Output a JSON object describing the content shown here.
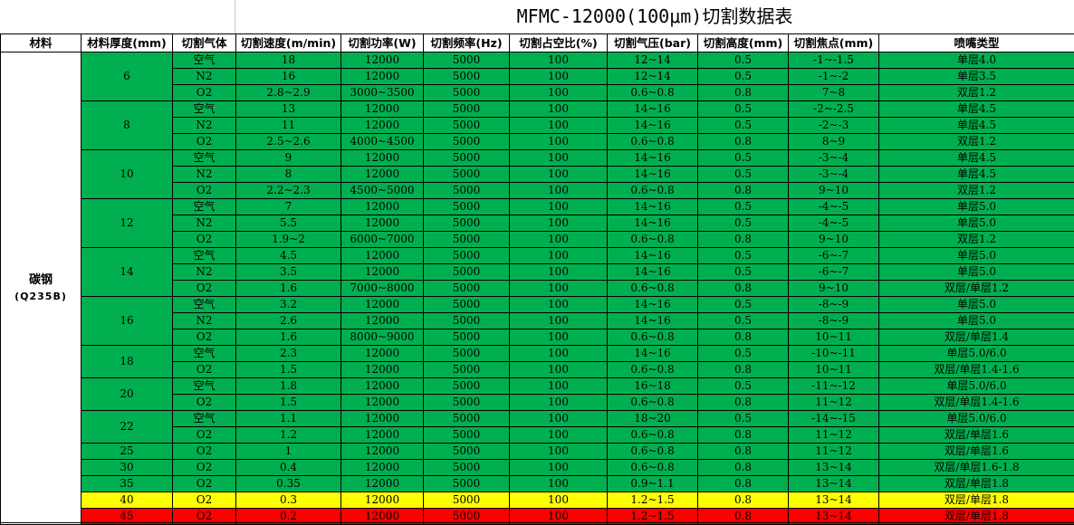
{
  "title": "MFMC-12000(100μm)切割数据表",
  "headers": [
    "材料",
    "材料厚度(mm)",
    "切割气体",
    "切割速度(m/min)",
    "切割功率(W)",
    "切割频率(Hz)",
    "切割占空比(%)",
    "切割气压(bar)",
    "切割高度(mm)",
    "切割焦点(mm)",
    "喷嘴类型"
  ],
  "material": {
    "name": "碳钢",
    "grade": "(Q235B)"
  },
  "colors": {
    "green": "#00b050",
    "yellow": "#ffff00",
    "red": "#ff0000"
  },
  "groups": [
    {
      "thickness": "6",
      "rows": [
        {
          "gas": "空气",
          "speed": "18",
          "power": "12000",
          "freq": "5000",
          "duty": "100",
          "pressure": "12~14",
          "height": "0.5",
          "focus": "-1~-1.5",
          "nozzle": "单层4.0"
        },
        {
          "gas": "N2",
          "speed": "16",
          "power": "12000",
          "freq": "5000",
          "duty": "100",
          "pressure": "12~14",
          "height": "0.5",
          "focus": "-1~-2",
          "nozzle": "单层3.5"
        },
        {
          "gas": "O2",
          "speed": "2.8~2.9",
          "power": "3000~3500",
          "freq": "5000",
          "duty": "100",
          "pressure": "0.6~0.8",
          "height": "0.8",
          "focus": "7~8",
          "nozzle": "双层1.2"
        }
      ]
    },
    {
      "thickness": "8",
      "rows": [
        {
          "gas": "空气",
          "speed": "13",
          "power": "12000",
          "freq": "5000",
          "duty": "100",
          "pressure": "14~16",
          "height": "0.5",
          "focus": "-2~-2.5",
          "nozzle": "单层4.5"
        },
        {
          "gas": "N2",
          "speed": "11",
          "power": "12000",
          "freq": "5000",
          "duty": "100",
          "pressure": "14~16",
          "height": "0.5",
          "focus": "-2~-3",
          "nozzle": "单层4.5"
        },
        {
          "gas": "O2",
          "speed": "2.5~2.6",
          "power": "4000~4500",
          "freq": "5000",
          "duty": "100",
          "pressure": "0.6~0.8",
          "height": "0.8",
          "focus": "8~9",
          "nozzle": "双层1.2"
        }
      ]
    },
    {
      "thickness": "10",
      "rows": [
        {
          "gas": "空气",
          "speed": "9",
          "power": "12000",
          "freq": "5000",
          "duty": "100",
          "pressure": "14~16",
          "height": "0.5",
          "focus": "-3~-4",
          "nozzle": "单层4.5"
        },
        {
          "gas": "N2",
          "speed": "8",
          "power": "12000",
          "freq": "5000",
          "duty": "100",
          "pressure": "14~16",
          "height": "0.5",
          "focus": "-3~-4",
          "nozzle": "单层4.5"
        },
        {
          "gas": "O2",
          "speed": "2.2~2.3",
          "power": "4500~5000",
          "freq": "5000",
          "duty": "100",
          "pressure": "0.6~0.8",
          "height": "0.8",
          "focus": "9~10",
          "nozzle": "双层1.2"
        }
      ]
    },
    {
      "thickness": "12",
      "rows": [
        {
          "gas": "空气",
          "speed": "7",
          "power": "12000",
          "freq": "5000",
          "duty": "100",
          "pressure": "14~16",
          "height": "0.5",
          "focus": "-4~-5",
          "nozzle": "单层5.0"
        },
        {
          "gas": "N2",
          "speed": "5.5",
          "power": "12000",
          "freq": "5000",
          "duty": "100",
          "pressure": "14~16",
          "height": "0.5",
          "focus": "-4~-5",
          "nozzle": "单层5.0"
        },
        {
          "gas": "O2",
          "speed": "1.9~2",
          "power": "6000~7000",
          "freq": "5000",
          "duty": "100",
          "pressure": "0.6~0.8",
          "height": "0.8",
          "focus": "9~10",
          "nozzle": "双层1.2"
        }
      ]
    },
    {
      "thickness": "14",
      "rows": [
        {
          "gas": "空气",
          "speed": "4.5",
          "power": "12000",
          "freq": "5000",
          "duty": "100",
          "pressure": "14~16",
          "height": "0.5",
          "focus": "-6~-7",
          "nozzle": "单层5.0"
        },
        {
          "gas": "N2",
          "speed": "3.5",
          "power": "12000",
          "freq": "5000",
          "duty": "100",
          "pressure": "14~16",
          "height": "0.5",
          "focus": "-6~-7",
          "nozzle": "单层5.0"
        },
        {
          "gas": "O2",
          "speed": "1.6",
          "power": "7000~8000",
          "freq": "5000",
          "duty": "100",
          "pressure": "0.6~0.8",
          "height": "0.8",
          "focus": "9~10",
          "nozzle": "双层/单层1.2"
        }
      ]
    },
    {
      "thickness": "16",
      "rows": [
        {
          "gas": "空气",
          "speed": "3.2",
          "power": "12000",
          "freq": "5000",
          "duty": "100",
          "pressure": "14~16",
          "height": "0.5",
          "focus": "-8~-9",
          "nozzle": "单层5.0"
        },
        {
          "gas": "N2",
          "speed": "2.6",
          "power": "12000",
          "freq": "5000",
          "duty": "100",
          "pressure": "14~16",
          "height": "0.5",
          "focus": "-8~-9",
          "nozzle": "单层5.0"
        },
        {
          "gas": "O2",
          "speed": "1.6",
          "power": "8000~9000",
          "freq": "5000",
          "duty": "100",
          "pressure": "0.6~0.8",
          "height": "0.8",
          "focus": "10~11",
          "nozzle": "双层/单层1.4"
        }
      ]
    },
    {
      "thickness": "18",
      "rows": [
        {
          "gas": "空气",
          "speed": "2.3",
          "power": "12000",
          "freq": "5000",
          "duty": "100",
          "pressure": "14~16",
          "height": "0.5",
          "focus": "-10~-11",
          "nozzle": "单层5.0/6.0"
        },
        {
          "gas": "O2",
          "speed": "1.5",
          "power": "12000",
          "freq": "5000",
          "duty": "100",
          "pressure": "0.6~0.8",
          "height": "0.8",
          "focus": "10~11",
          "nozzle": "双层/单层1.4-1.6"
        }
      ]
    },
    {
      "thickness": "20",
      "rows": [
        {
          "gas": "空气",
          "speed": "1.8",
          "power": "12000",
          "freq": "5000",
          "duty": "100",
          "pressure": "16~18",
          "height": "0.5",
          "focus": "-11~-12",
          "nozzle": "单层5.0/6.0"
        },
        {
          "gas": "O2",
          "speed": "1.5",
          "power": "12000",
          "freq": "5000",
          "duty": "100",
          "pressure": "0.6~0.8",
          "height": "0.8",
          "focus": "11~12",
          "nozzle": "双层/单层1.4-1.6"
        }
      ]
    },
    {
      "thickness": "22",
      "rows": [
        {
          "gas": "空气",
          "speed": "1.1",
          "power": "12000",
          "freq": "5000",
          "duty": "100",
          "pressure": "18~20",
          "height": "0.5",
          "focus": "-14~-15",
          "nozzle": "单层5.0/6.0"
        },
        {
          "gas": "O2",
          "speed": "1.2",
          "power": "12000",
          "freq": "5000",
          "duty": "100",
          "pressure": "0.6~0.8",
          "height": "0.8",
          "focus": "11~12",
          "nozzle": "双层/单层1.6"
        }
      ]
    },
    {
      "thickness": "25",
      "rows": [
        {
          "gas": "O2",
          "speed": "1",
          "power": "12000",
          "freq": "5000",
          "duty": "100",
          "pressure": "0.6~0.8",
          "height": "0.8",
          "focus": "11~12",
          "nozzle": "双层/单层1.6"
        }
      ]
    },
    {
      "thickness": "30",
      "rows": [
        {
          "gas": "O2",
          "speed": "0.4",
          "power": "12000",
          "freq": "5000",
          "duty": "100",
          "pressure": "0.6~0.8",
          "height": "0.8",
          "focus": "13~14",
          "nozzle": "双层/单层1.6-1.8"
        }
      ]
    },
    {
      "thickness": "35",
      "rows": [
        {
          "gas": "O2",
          "speed": "0.35",
          "power": "12000",
          "freq": "5000",
          "duty": "100",
          "pressure": "0.9~1.1",
          "height": "0.8",
          "focus": "13~14",
          "nozzle": "双层/单层1.8"
        }
      ]
    },
    {
      "thickness": "40",
      "highlight": "yellow",
      "rows": [
        {
          "gas": "O2",
          "speed": "0.3",
          "power": "12000",
          "freq": "5000",
          "duty": "100",
          "pressure": "1.2~1.5",
          "height": "0.8",
          "focus": "13~14",
          "nozzle": "双层/单层1.8"
        }
      ]
    },
    {
      "thickness": "45",
      "highlight": "red",
      "rows": [
        {
          "gas": "O2",
          "speed": "0.2",
          "power": "12000",
          "freq": "5000",
          "duty": "100",
          "pressure": "1.2~1.5",
          "height": "0.8",
          "focus": "13~14",
          "nozzle": "双层/单层1.8"
        }
      ]
    }
  ]
}
